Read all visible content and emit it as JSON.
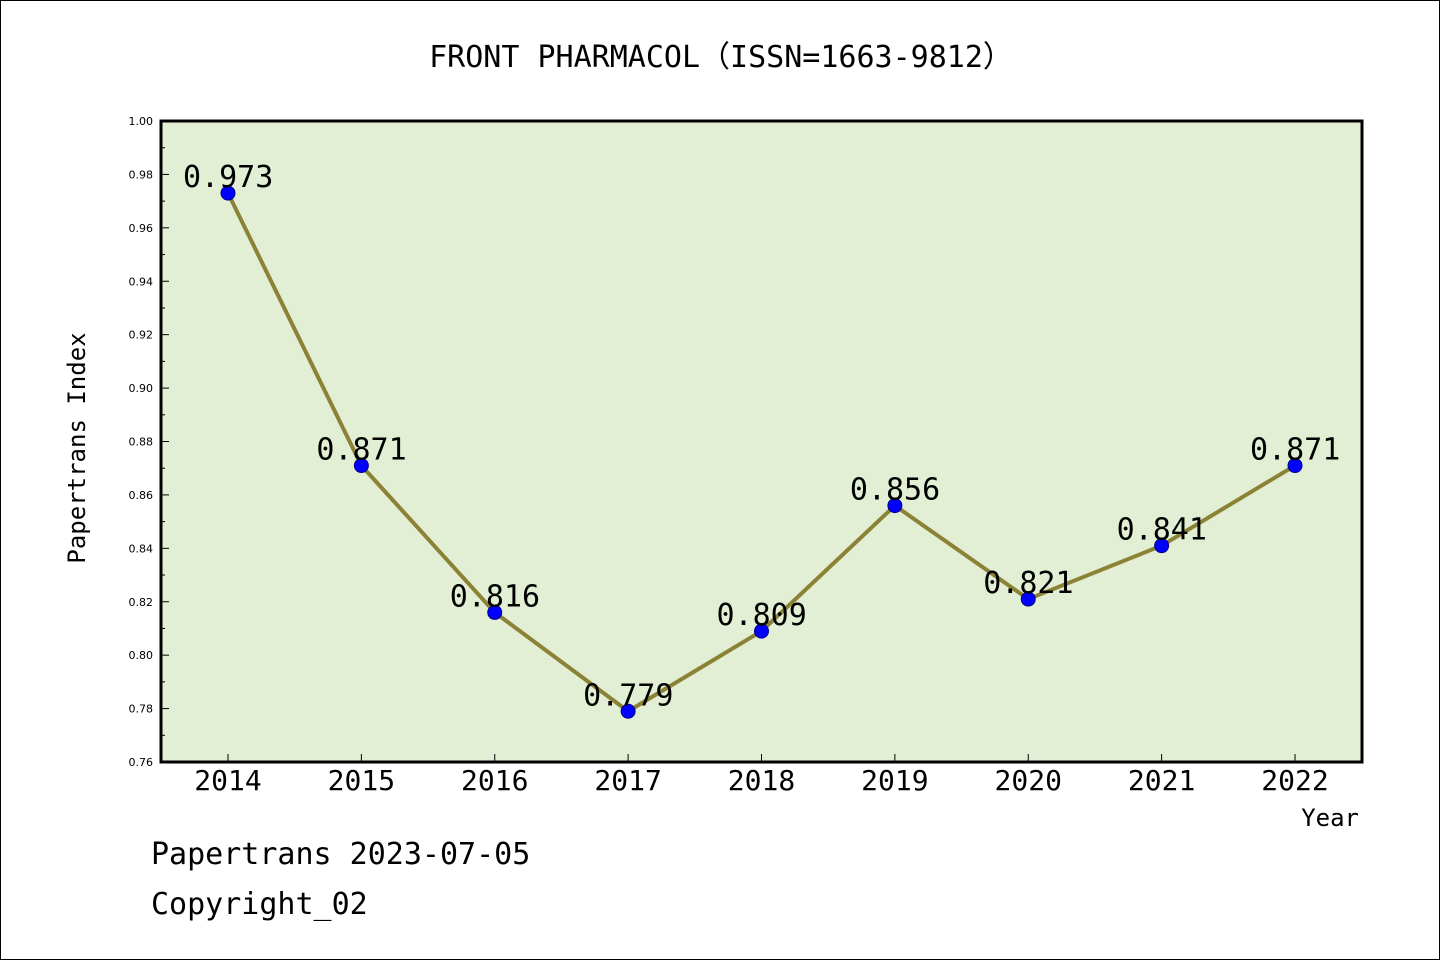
{
  "chart_data": {
    "type": "line",
    "title": "FRONT PHARMACOL（ISSN=1663-9812）",
    "xlabel": "Year",
    "ylabel": "Papertrans Index",
    "categories": [
      "2014",
      "2015",
      "2016",
      "2017",
      "2018",
      "2019",
      "2020",
      "2021",
      "2022"
    ],
    "values": [
      0.973,
      0.871,
      0.816,
      0.779,
      0.809,
      0.856,
      0.821,
      0.841,
      0.871
    ],
    "data_labels": [
      "0.973",
      "0.871",
      "0.816",
      "0.779",
      "0.809",
      "0.856",
      "0.821",
      "0.841",
      "0.871"
    ],
    "ylim": [
      0.76,
      1.0
    ],
    "yticks": [
      "0.76",
      "0.78",
      "0.80",
      "0.82",
      "0.84",
      "0.86",
      "0.88",
      "0.90",
      "0.92",
      "0.94",
      "0.96",
      "0.98",
      "1.00"
    ],
    "grid": false,
    "colors": {
      "plot_background": "#e2efd4",
      "line": "#8b8236",
      "marker": "#0000ff"
    }
  },
  "footer": {
    "line1": "Papertrans 2023-07-05",
    "line2": "Copyright_02"
  }
}
